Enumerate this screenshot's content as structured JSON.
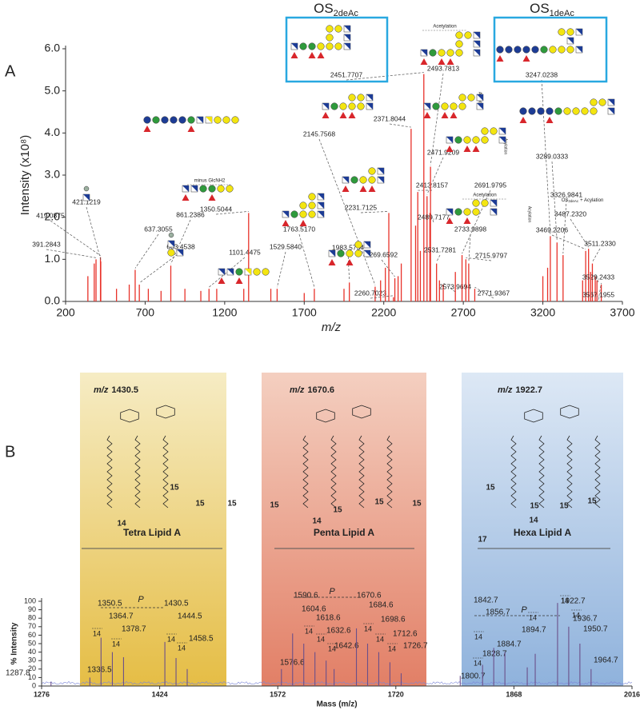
{
  "chart_data": [
    {
      "type": "spectrum",
      "panel_label": "A",
      "ylabel": "Intensity (x10⁸)",
      "xlabel": "m/z",
      "color": "#e8322a",
      "xlim": [
        200,
        3700
      ],
      "xticks": [
        200,
        700,
        1200,
        1700,
        2200,
        2700,
        3200,
        3700
      ],
      "ylim": [
        0,
        6.0
      ],
      "yticks": [
        {
          "value": 0,
          "label": "0.0"
        },
        {
          "value": 1,
          "label": "1.0"
        },
        {
          "value": 2,
          "label": "2.0"
        },
        {
          "value": 3,
          "label": "3.0"
        },
        {
          "value": 4,
          "label": "4.0"
        },
        {
          "value": 5,
          "label": "5.0"
        },
        {
          "value": 6,
          "label": "6.0"
        }
      ],
      "x": [
        391.2843,
        419.0875,
        421.1219,
        637.3055,
        663.4538,
        861.2386,
        1101.4475,
        1350.5044,
        1529.584,
        1763.517,
        1983.5754,
        2145.7568,
        2231.7125,
        2260.7023,
        2269.6592,
        2371.8044,
        2413.8157,
        2451.7707,
        2471.9209,
        2489.7177,
        2493.7813,
        2531.7281,
        2573.9694,
        2691.9795,
        2715.9797,
        2733.9898,
        2771.9367,
        3247.0238,
        3289.0333,
        3326.9841,
        3469.2206,
        3487.232,
        3511.233,
        3529.2433,
        3567.1955,
        340,
        380,
        520,
        600,
        720,
        800,
        950,
        1050,
        1150,
        1320,
        1490,
        1700,
        1950,
        2180,
        2210,
        2290,
        2310,
        2400,
        2430,
        2550,
        2650,
        3200,
        3230,
        3450,
        3500,
        3540
      ],
      "values": [
        1.0,
        1.05,
        0.95,
        0.75,
        0.4,
        0.85,
        0.3,
        2.1,
        0.3,
        0.3,
        0.45,
        0.35,
        2.1,
        0.1,
        0.55,
        4.1,
        2.6,
        5.4,
        2.5,
        2.1,
        3.2,
        0.9,
        0.4,
        1.1,
        1.0,
        0.9,
        0.3,
        1.55,
        1.4,
        1.1,
        1.2,
        1.25,
        0.9,
        0.6,
        0.4,
        0.6,
        0.9,
        0.3,
        0.4,
        0.3,
        0.25,
        0.3,
        0.25,
        0.3,
        0.3,
        0.3,
        0.2,
        0.3,
        0.5,
        0.8,
        0.6,
        0.9,
        1.8,
        1.2,
        0.5,
        0.7,
        0.6,
        0.8,
        0.5,
        0.7,
        0.5
      ],
      "x_labels": [
        "391.2843",
        "419.0875",
        "421.1219",
        "637.3055",
        "663.4538",
        "861.2386",
        "1101.4475",
        "1350.5044",
        "1529.5840",
        "1763.5170",
        "1983.5754",
        "2145.7568",
        "2231.7125",
        "2260.7023",
        "2269.6592",
        "2371.8044",
        "2413.8157",
        "2451.7707",
        "2471.9209",
        "2489.7177",
        "2493.7813",
        "2531.7281",
        "2573.9694",
        "2691.9795",
        "2715.9797",
        "2733.9898",
        "2771.9367",
        "3247.0238",
        "3289.0333",
        "3326.9841",
        "3469.2206",
        "3487.2320",
        "3511.2330",
        "3529.2433",
        "3567.1955",
        null,
        null,
        null,
        null,
        null,
        null,
        null,
        null,
        null,
        null,
        null,
        null,
        null,
        null,
        null,
        null,
        null,
        null,
        null,
        null,
        null,
        null,
        null,
        null,
        null,
        null
      ],
      "boxes": [
        {
          "title": "OS",
          "title_sub": "2deAc"
        },
        {
          "title": "OS",
          "title_sub": "1deAc"
        }
      ],
      "annotations": [
        "Acetylation",
        "Acetylation",
        "minus GlcNH2",
        "Acylation",
        "Acylation",
        "Acylation"
      ],
      "acylation_note": {
        "text": "OS",
        "sub": "2deAc",
        "after": "+ Acylation"
      }
    },
    {
      "type": "spectrum",
      "panel_label": "B",
      "ylabel": "% Intensity",
      "xlabel": "Mass (m/z)",
      "color": "#6b4f8a",
      "label_color": "#a8231f",
      "xlim": [
        1276,
        2016
      ],
      "xticks": [
        1276,
        1424,
        1572,
        1720,
        1868,
        2016
      ],
      "ylim": [
        0,
        100
      ],
      "yticks": [
        0,
        10,
        20,
        30,
        40,
        50,
        60,
        70,
        80,
        90,
        100
      ],
      "x": [
        1287.8,
        1336.5,
        1350.5,
        1364.7,
        1378.7,
        1430.5,
        1444.5,
        1458.5,
        1576.6,
        1590.6,
        1604.6,
        1618.6,
        1632.6,
        1642.6,
        1670.6,
        1684.6,
        1698.6,
        1712.6,
        1726.7,
        1800.7,
        1828.7,
        1842.7,
        1856.7,
        1884.7,
        1894.7,
        1922.7,
        1936.7,
        1950.7,
        1964.7
      ],
      "values": [
        5,
        10,
        57,
        40,
        34,
        52,
        33,
        20,
        20,
        62,
        50,
        40,
        30,
        20,
        68,
        50,
        40,
        28,
        15,
        12,
        25,
        45,
        40,
        22,
        38,
        98,
        70,
        50,
        20
      ],
      "regions": [
        {
          "title_prefix": "m/z",
          "title_value": "1430.5",
          "name": "Tetra Lipid A",
          "chain_labels": [
            "15",
            "15",
            "15",
            "14"
          ]
        },
        {
          "title_prefix": "m/z",
          "title_value": "1670.6",
          "name": "Penta Lipid A",
          "chain_labels": [
            "15",
            "15",
            "15",
            "15",
            "14"
          ]
        },
        {
          "title_prefix": "m/z",
          "title_value": "1922.7",
          "name": "Hexa Lipid A",
          "chain_labels": [
            "15",
            "15",
            "15",
            "14",
            "15",
            "17"
          ]
        }
      ],
      "step_label": "14",
      "period_label": "P"
    }
  ]
}
